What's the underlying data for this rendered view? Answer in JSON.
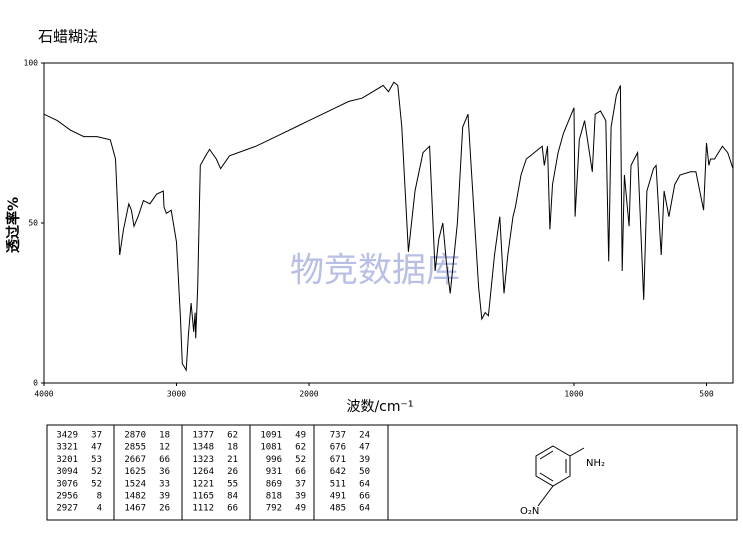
{
  "chart_data": {
    "type": "line",
    "title": "石蜡糊法",
    "xlabel": "波数/cm⁻¹",
    "ylabel": "透过率%",
    "annotation": "物竞数据库",
    "color": "#000000",
    "x": [
      4000,
      3900,
      3800,
      3700,
      3600,
      3500,
      3460,
      3429,
      3400,
      3360,
      3340,
      3321,
      3290,
      3250,
      3201,
      3150,
      3100,
      3094,
      3076,
      3040,
      3000,
      2970,
      2956,
      2940,
      2927,
      2910,
      2890,
      2870,
      2860,
      2855,
      2840,
      2820,
      2780,
      2750,
      2700,
      2667,
      2600,
      2400,
      2300,
      2200,
      2100,
      2000,
      1950,
      1900,
      1850,
      1800,
      1760,
      1720,
      1700,
      1680,
      1665,
      1650,
      1625,
      1600,
      1570,
      1545,
      1524,
      1510,
      1495,
      1482,
      1467,
      1440,
      1420,
      1400,
      1390,
      1360,
      1348,
      1335,
      1323,
      1300,
      1280,
      1264,
      1250,
      1230,
      1221,
      1200,
      1180,
      1150,
      1120,
      1112,
      1100,
      1091,
      1081,
      1060,
      1040,
      1010,
      1000,
      996,
      980,
      960,
      931,
      920,
      900,
      880,
      869,
      860,
      840,
      825,
      818,
      810,
      792,
      785,
      760,
      737,
      725,
      700,
      690,
      676,
      671,
      660,
      642,
      620,
      600,
      560,
      540,
      511,
      500,
      491,
      485,
      470,
      440,
      420,
      400
    ],
    "values": [
      84,
      82,
      79,
      77,
      77,
      76,
      70,
      40,
      48,
      56,
      54,
      49,
      52,
      57,
      56,
      59,
      60,
      55,
      53,
      54,
      44,
      20,
      6,
      5,
      4,
      15,
      25,
      16,
      22,
      14,
      30,
      68,
      71,
      73,
      70,
      67,
      71,
      74,
      76,
      78,
      80,
      82,
      84,
      86,
      88,
      89,
      91,
      93,
      91,
      94,
      93,
      80,
      41,
      60,
      72,
      74,
      35,
      45,
      50,
      38,
      28,
      50,
      80,
      84,
      70,
      30,
      20,
      22,
      21,
      40,
      52,
      28,
      40,
      52,
      55,
      65,
      70,
      72,
      74,
      68,
      74,
      48,
      62,
      72,
      78,
      84,
      86,
      52,
      76,
      82,
      66,
      84,
      85,
      82,
      38,
      80,
      90,
      93,
      35,
      65,
      49,
      68,
      72,
      26,
      60,
      67,
      68,
      47,
      40,
      60,
      52,
      62,
      65,
      66,
      66,
      54,
      75,
      68,
      70,
      70,
      74,
      72,
      67
    ],
    "xlim": [
      4000,
      400
    ],
    "xticks": [
      4000,
      3000,
      2000,
      1000,
      500
    ],
    "xscale_break": 2000,
    "ylim": [
      0,
      100
    ],
    "yticks": [
      0,
      50,
      100
    ]
  },
  "peak_table": {
    "columns": [
      [
        [
          3429,
          37
        ],
        [
          3321,
          47
        ],
        [
          3201,
          53
        ],
        [
          3094,
          52
        ],
        [
          3076,
          52
        ],
        [
          2956,
          8
        ],
        [
          2927,
          4
        ]
      ],
      [
        [
          2870,
          18
        ],
        [
          2855,
          12
        ],
        [
          2667,
          66
        ],
        [
          1625,
          36
        ],
        [
          1524,
          33
        ],
        [
          1482,
          39
        ],
        [
          1467,
          26
        ]
      ],
      [
        [
          1377,
          62
        ],
        [
          1348,
          18
        ],
        [
          1323,
          21
        ],
        [
          1264,
          26
        ],
        [
          1221,
          55
        ],
        [
          1165,
          84
        ],
        [
          1112,
          66
        ]
      ],
      [
        [
          1091,
          49
        ],
        [
          1081,
          62
        ],
        [
          996,
          52
        ],
        [
          931,
          66
        ],
        [
          869,
          37
        ],
        [
          818,
          39
        ],
        [
          792,
          49
        ]
      ],
      [
        [
          737,
          24
        ],
        [
          676,
          47
        ],
        [
          671,
          39
        ],
        [
          642,
          50
        ],
        [
          511,
          64
        ],
        [
          491,
          66
        ],
        [
          485,
          64
        ]
      ]
    ]
  },
  "structure": {
    "labels": [
      "NH₂",
      "O₂N"
    ]
  }
}
